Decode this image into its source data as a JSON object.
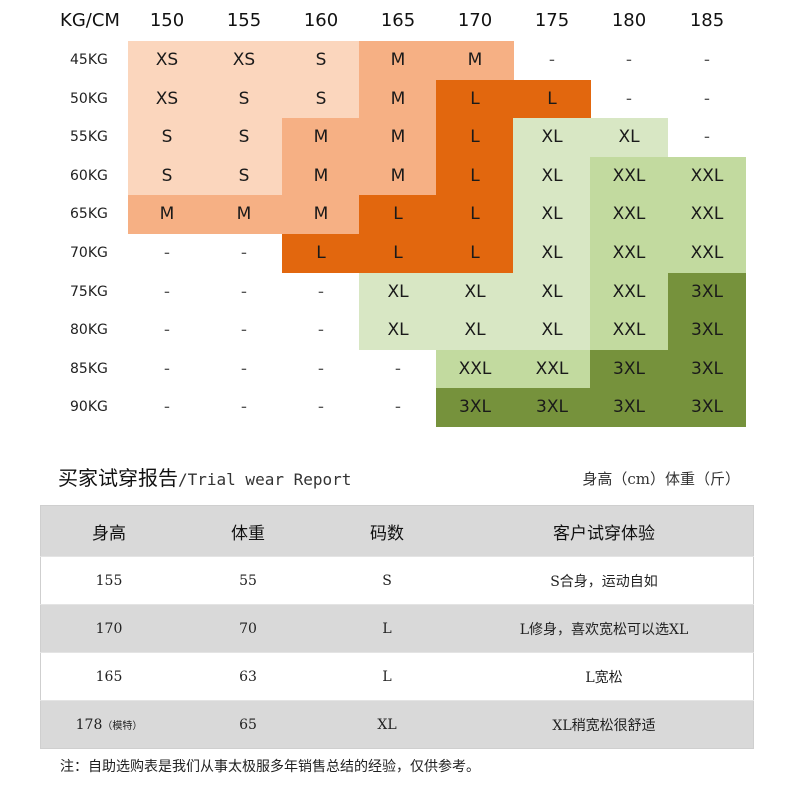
{
  "size_chart": {
    "corner_label": "KG/CM",
    "heights": [
      "150",
      "155",
      "160",
      "165",
      "170",
      "175",
      "180",
      "185"
    ],
    "rows": [
      {
        "weight": "45KG",
        "sizes": [
          "XS",
          "XS",
          "S",
          "M",
          "M",
          "-",
          "-",
          "-"
        ]
      },
      {
        "weight": "50KG",
        "sizes": [
          "XS",
          "S",
          "S",
          "M",
          "L",
          "L",
          "-",
          "-"
        ]
      },
      {
        "weight": "55KG",
        "sizes": [
          "S",
          "S",
          "M",
          "M",
          "L",
          "XL",
          "XL",
          "-"
        ]
      },
      {
        "weight": "60KG",
        "sizes": [
          "S",
          "S",
          "M",
          "M",
          "L",
          "XL",
          "XXL",
          "XXL"
        ]
      },
      {
        "weight": "65KG",
        "sizes": [
          "M",
          "M",
          "M",
          "L",
          "L",
          "XL",
          "XXL",
          "XXL"
        ]
      },
      {
        "weight": "70KG",
        "sizes": [
          "-",
          "-",
          "L",
          "L",
          "L",
          "XL",
          "XXL",
          "XXL"
        ]
      },
      {
        "weight": "75KG",
        "sizes": [
          "-",
          "-",
          "-",
          "XL",
          "XL",
          "XL",
          "XXL",
          "3XL"
        ]
      },
      {
        "weight": "80KG",
        "sizes": [
          "-",
          "-",
          "-",
          "XL",
          "XL",
          "XL",
          "XXL",
          "3XL"
        ]
      },
      {
        "weight": "85KG",
        "sizes": [
          "-",
          "-",
          "-",
          "-",
          "XXL",
          "XXL",
          "3XL",
          "3XL"
        ]
      },
      {
        "weight": "90KG",
        "sizes": [
          "-",
          "-",
          "-",
          "-",
          "3XL",
          "3XL",
          "3XL",
          "3XL"
        ]
      }
    ],
    "colors": {
      "XS": "#fbd6bd",
      "S": "#fbd6bd",
      "M": "#f6b084",
      "L": "#e2670e",
      "XL": "#d8e7c4",
      "XXL": "#c2da9f",
      "3XL": "#76923c"
    }
  },
  "report": {
    "title_cn": "买家试穿报告",
    "title_en": "/Trial wear Report",
    "unit_note": "身高（cm）体重（斤）",
    "columns": [
      "身高",
      "体重",
      "码数",
      "客户试穿体验"
    ],
    "rows": [
      {
        "height": "155",
        "height_note": "",
        "weight": "55",
        "size": "S",
        "experience": "S合身，运动自如"
      },
      {
        "height": "170",
        "height_note": "",
        "weight": "70",
        "size": "L",
        "experience": "L修身，喜欢宽松可以选XL"
      },
      {
        "height": "165",
        "height_note": "",
        "weight": "63",
        "size": "L",
        "experience": "L宽松"
      },
      {
        "height": "178",
        "height_note": "（模特）",
        "weight": "65",
        "size": "XL",
        "experience": "XL稍宽松很舒适"
      }
    ]
  },
  "footnote": "注：自助选购表是我们从事太极服多年销售总结的经验，仅供参考。"
}
